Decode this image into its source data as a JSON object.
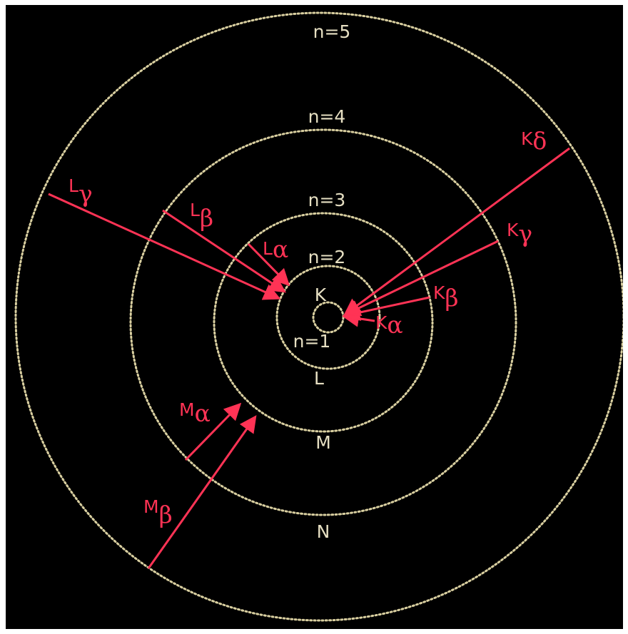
{
  "colors": {
    "background": "#000000",
    "shell": "#d9cfa0",
    "shell_label": "#e6dfc2",
    "transition": "#ff3355"
  },
  "shells": {
    "n1": {
      "level": "n=1",
      "name": "K"
    },
    "n2": {
      "level": "n=2",
      "name": "L"
    },
    "n3": {
      "level": "n=3",
      "name": "M"
    },
    "n4": {
      "level": "n=4",
      "name": "N"
    },
    "n5": {
      "level": "n=5"
    }
  },
  "transitions": {
    "k_alpha": {
      "letter": "K",
      "greek": "α"
    },
    "k_beta": {
      "letter": "K",
      "greek": "β"
    },
    "k_gamma": {
      "letter": "K",
      "greek": "γ"
    },
    "k_delta": {
      "letter": "K",
      "greek": "δ"
    },
    "l_alpha": {
      "letter": "L",
      "greek": "α"
    },
    "l_beta": {
      "letter": "L",
      "greek": "β"
    },
    "l_gamma": {
      "letter": "L",
      "greek": "γ"
    },
    "m_alpha": {
      "letter": "M",
      "greek": "α"
    },
    "m_beta": {
      "letter": "M",
      "greek": "β"
    }
  }
}
